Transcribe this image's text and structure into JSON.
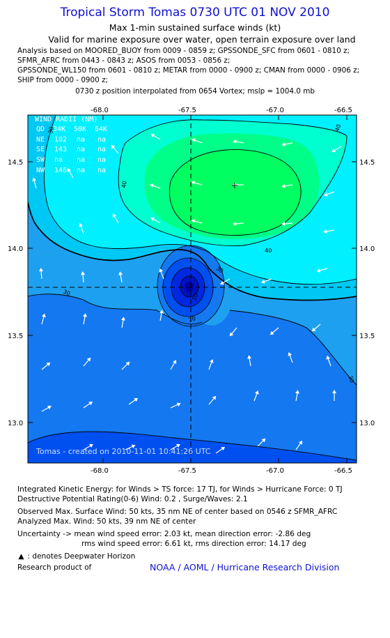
{
  "header": {
    "title": "Tropical Storm Tomas 0730 UTC 01 NOV 2010",
    "subtitle1": "Max 1-min sustained surface winds (kt)",
    "subtitle2": "Valid for marine exposure over water, open terrain exposure over land",
    "analysis_lines": [
      "Analysis based on MOORED_BUOY from 0009 - 0859 z; GPSSONDE_SFC from 0601 - 0810 z;",
      "SFMR_AFRC from 0443 - 0843 z; ASOS from 0053 - 0856 z;",
      "GPSSONDE_WL150 from 0601 - 0810 z; METAR from 0000 - 0900 z; CMAN from 0000 - 0906 z;",
      "SHIP from 0000 - 0900 z;"
    ],
    "center_line": "0730 z position interpolated from 0654 Vortex; mslp = 1004.0 mb"
  },
  "map": {
    "x_ticks": [
      "-68.0",
      "-67.5",
      "-67.0",
      "-66.5"
    ],
    "y_ticks": [
      "14.5",
      "14.0",
      "13.5",
      "13.0"
    ],
    "wind_radii_title": "WIND RADII (NM)",
    "wind_radii_header": [
      "QD",
      "34K",
      "50K",
      "64K"
    ],
    "wind_radii_rows": [
      [
        "NE",
        "182",
        "na",
        "na"
      ],
      [
        "SE",
        "143",
        "na",
        "na"
      ],
      [
        "SW",
        "na",
        "na",
        "na"
      ],
      [
        "NW",
        "146",
        "na",
        "na"
      ]
    ],
    "contour_labels": [
      "40",
      "40",
      "40",
      "30",
      "30",
      "30",
      "20",
      "10",
      "30"
    ],
    "watermark": "Tomas - created on 2010-11-01 10:41:26 UTC",
    "colors": {
      "cyan": "#00f0ff",
      "light_cyan": "#00c8f4",
      "aqua": "#00ffd0",
      "green": "#00ff88",
      "bright_green": "#00ff60",
      "sky_blue": "#1ea0f0",
      "blue": "#1478f0",
      "mid_blue": "#0050f0",
      "dark_blue": "#0028e0",
      "navy": "#0010c0"
    }
  },
  "footer": {
    "ike": "Integrated Kinetic Energy:  for Winds > TS force: 17 TJ,  for Winds > Hurricane Force: 0 TJ",
    "dpr": "Destructive Potential Rating(0-6)   Wind: 0.2 , Surge/Waves: 2.1",
    "observed": "Observed Max. Surface Wind: 50 kts, 35 nm NE of center based on 0546 z SFMR_AFRC",
    "analyzed": "Analyzed Max. Wind: 50 kts, 39 nm NE of center",
    "uncertainty1": "Uncertainty -> mean wind speed error: 2.03 kt,   mean direction error:  -2.86 deg",
    "uncertainty2": "rms wind speed error: 6.61 kt,   rms direction error: 14.17 deg",
    "legend_dwh": ": denotes Deepwater Horizon",
    "research": "Research product of",
    "noaa": "NOAA / AOML / Hurricane Research Division"
  }
}
